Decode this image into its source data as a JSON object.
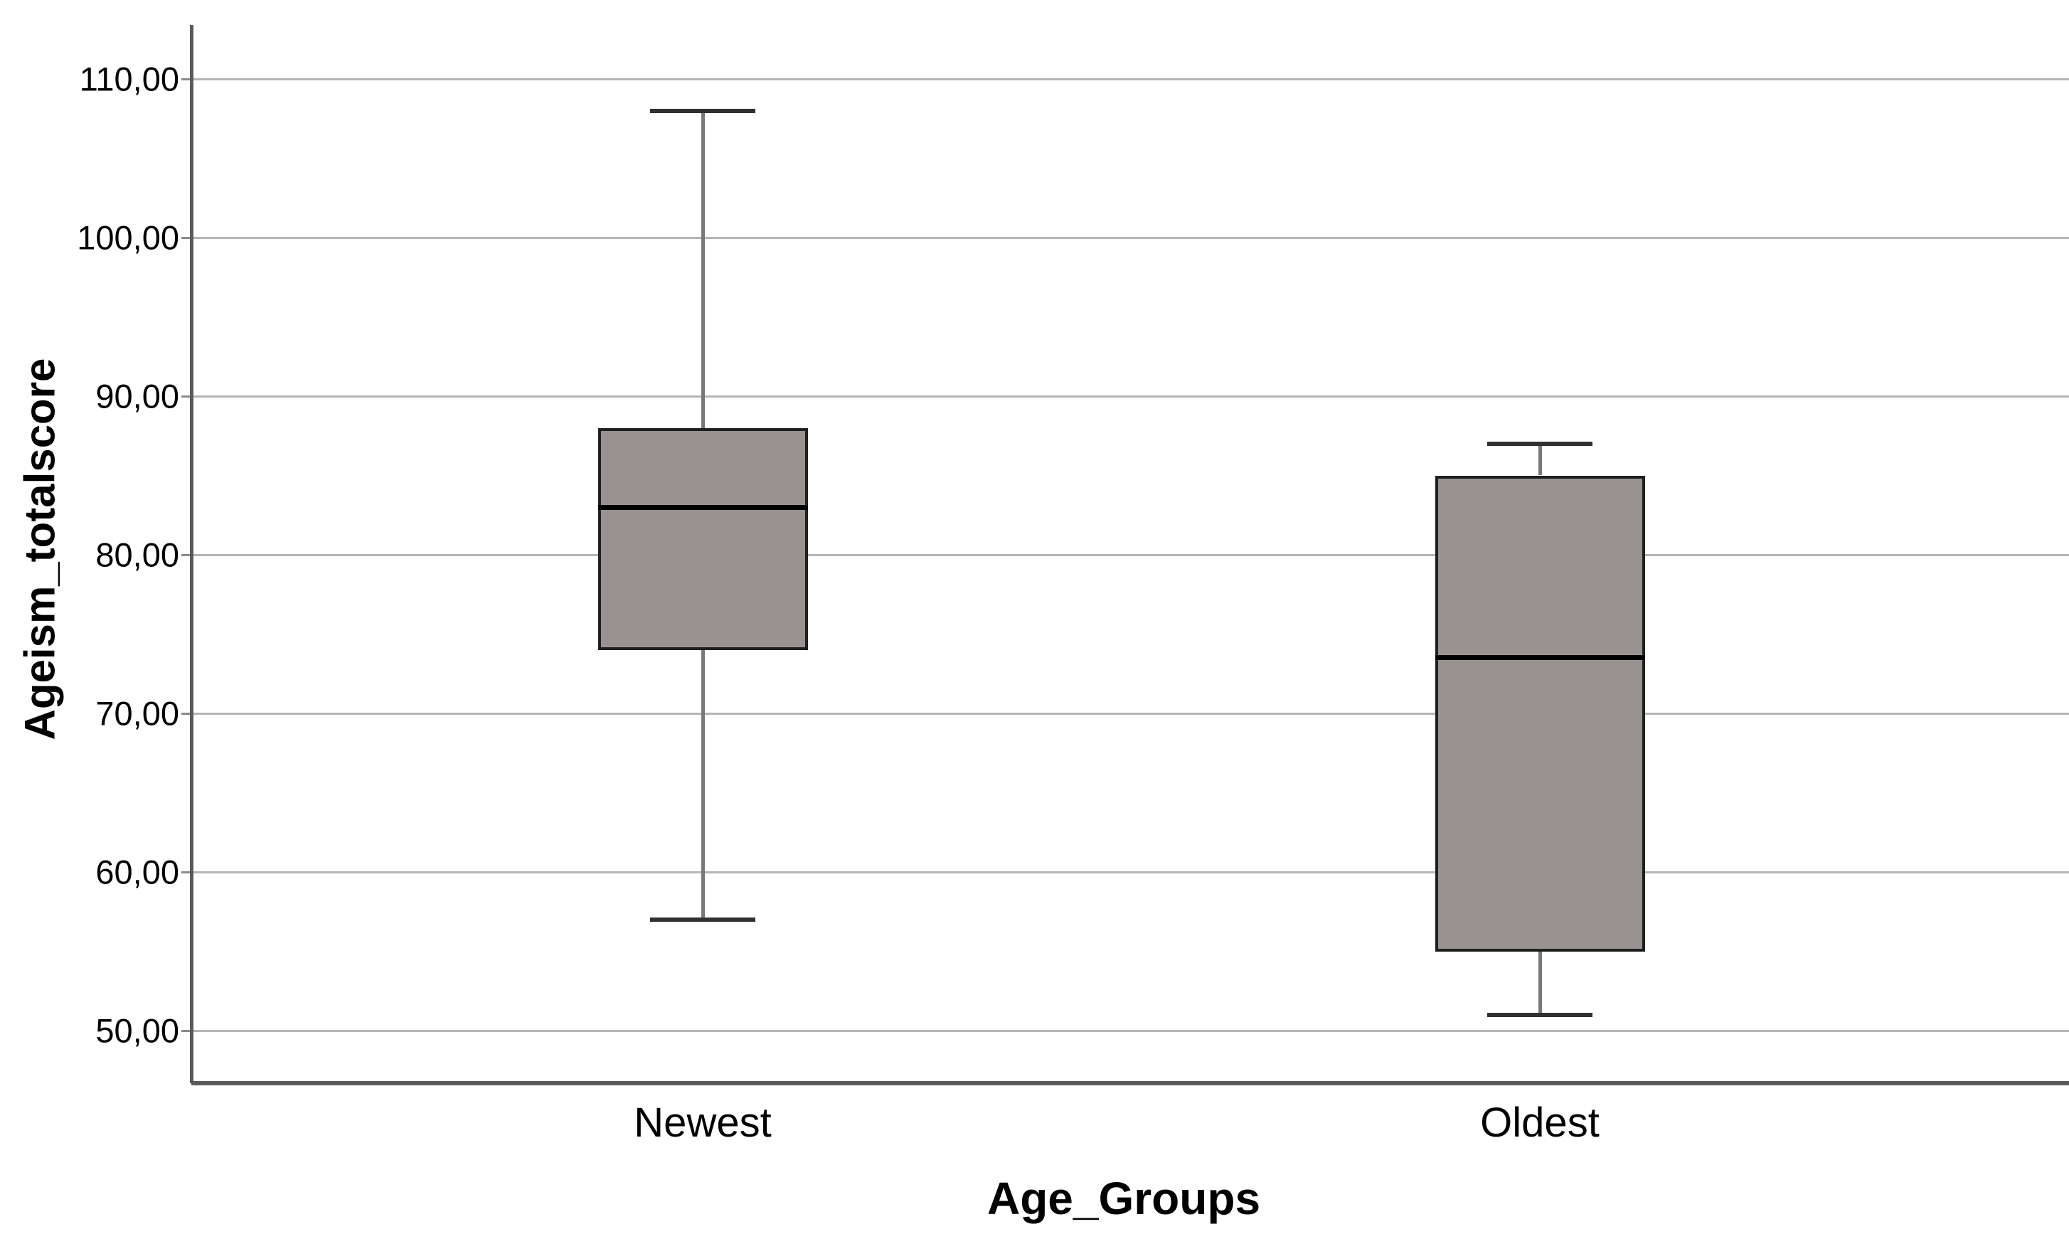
{
  "chart_data": {
    "type": "boxplot",
    "title": "",
    "xlabel": "Age_Groups",
    "ylabel": "Ageism_totalscore",
    "categories": [
      "Newest",
      "Oldest"
    ],
    "series": [
      {
        "name": "Newest",
        "whisker_low": 57,
        "q1": 74,
        "median": 83,
        "q3": 88,
        "whisker_high": 108
      },
      {
        "name": "Oldest",
        "whisker_low": 51,
        "q1": 55,
        "median": 73.5,
        "q3": 85,
        "whisker_high": 87
      }
    ],
    "y_ticks": [
      50,
      60,
      70,
      80,
      90,
      100,
      110
    ],
    "y_tick_labels": [
      "50,00",
      "60,00",
      "70,00",
      "80,00",
      "90,00",
      "100,00",
      "110,00"
    ],
    "ylim": [
      46.7,
      113.4
    ],
    "grid": "horizontal",
    "legend": "none",
    "colors": {
      "background": "#ffffff",
      "box_fill": "#9a9290",
      "box_border": "#1f1f1f",
      "median": "#000000",
      "whisker": "#787878",
      "cap": "#303030",
      "gridline": "#b5b5b5",
      "axis_line": "#5a5a5a",
      "tick": "#8a8a8a",
      "text": "#000000"
    }
  }
}
